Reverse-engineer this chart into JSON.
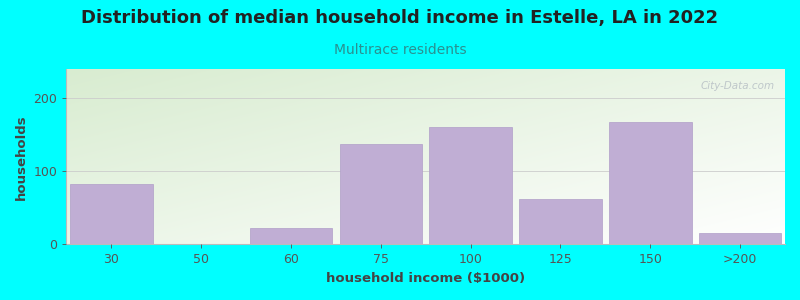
{
  "title": "Distribution of median household income in Estelle, LA in 2022",
  "subtitle": "Multirace residents",
  "xlabel": "household income ($1000)",
  "ylabel": "households",
  "background_color": "#00FFFF",
  "plot_bg_color_topleft": "#d8ecd0",
  "plot_bg_color_bottomright": "#ffffff",
  "bar_color": "#c0aed4",
  "bar_edge_color": "#b09ec8",
  "categories": [
    "30",
    "50",
    "60",
    "75",
    "100",
    "125",
    "150",
    ">200"
  ],
  "values": [
    82,
    0,
    22,
    138,
    160,
    62,
    168,
    15
  ],
  "ylim": [
    0,
    240
  ],
  "yticks": [
    0,
    100,
    200
  ],
  "title_fontsize": 13,
  "subtitle_fontsize": 10,
  "axis_label_fontsize": 9.5,
  "tick_fontsize": 9,
  "title_color": "#222222",
  "subtitle_color": "#2a9090",
  "axis_label_color": "#444444",
  "tick_color": "#555555",
  "watermark_text": "City-Data.com",
  "grid_color": "#cccccc"
}
